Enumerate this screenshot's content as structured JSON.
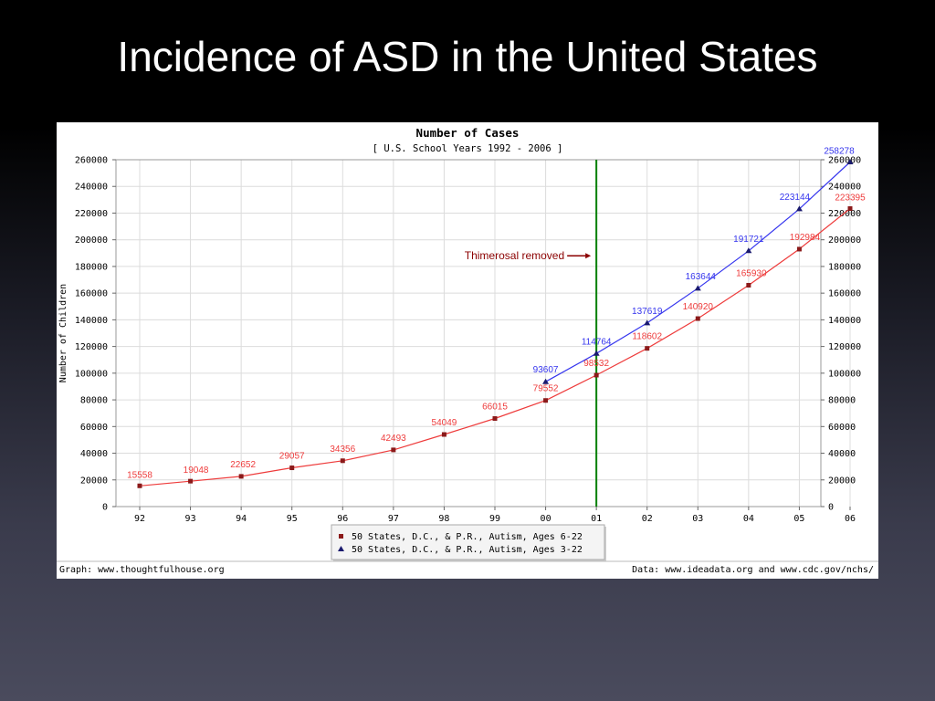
{
  "slide": {
    "title": "Incidence of ASD in the United States"
  },
  "chart_data": {
    "type": "line",
    "title": "Number of Cases",
    "subtitle": "[ U.S. School Years 1992 - 2006 ]",
    "ylabel": "Number of Children",
    "xlabel": "",
    "ylim": [
      0,
      260000
    ],
    "y_ticks": [
      "0",
      "20000",
      "40000",
      "60000",
      "80000",
      "100000",
      "120000",
      "140000",
      "160000",
      "180000",
      "200000",
      "220000",
      "240000",
      "260000"
    ],
    "categories": [
      "92",
      "93",
      "94",
      "95",
      "96",
      "97",
      "98",
      "99",
      "00",
      "01",
      "02",
      "03",
      "04",
      "05",
      "06"
    ],
    "grid": true,
    "legend_position": "bottom",
    "series": [
      {
        "name": "50 States, D.C., & P.R., Autism, Ages 6-22",
        "color": "#ee3b3b",
        "marker_color": "#8b1a1a",
        "marker": "square",
        "values": [
          15558,
          19048,
          22652,
          29057,
          34356,
          42493,
          54049,
          66015,
          79552,
          98532,
          118602,
          140920,
          165930,
          192984,
          223395
        ]
      },
      {
        "name": "50 States, D.C., & P.R., Autism, Ages 3-22",
        "color": "#3535ee",
        "marker_color": "#1a1a6e",
        "marker": "triangle",
        "values": [
          null,
          null,
          null,
          null,
          null,
          null,
          null,
          null,
          93607,
          114764,
          137619,
          163644,
          191721,
          223144,
          258278
        ]
      }
    ],
    "annotation": {
      "text": "Thimerosal removed",
      "at_category": "01",
      "line_color": "#008000",
      "text_color": "#8b0000"
    },
    "footer_left": "Graph: www.thoughtfulhouse.org",
    "footer_right": "Data: www.ideadata.org and www.cdc.gov/nchs/"
  }
}
